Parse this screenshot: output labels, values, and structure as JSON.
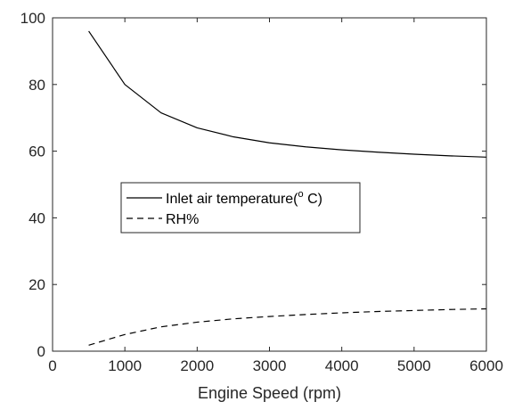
{
  "chart_data": {
    "type": "line",
    "xlabel": "Engine Speed (rpm)",
    "ylabel": "",
    "xlim": [
      0,
      6000
    ],
    "ylim": [
      0,
      100
    ],
    "xticks": [
      0,
      1000,
      2000,
      3000,
      4000,
      5000,
      6000
    ],
    "yticks": [
      0,
      20,
      40,
      60,
      80,
      100
    ],
    "grid": false,
    "box": true,
    "legend": {
      "placement": "center-left",
      "entries": [
        {
          "label_main": "Inlet air temperature(",
          "label_sup": "o",
          "label_tail": " C)"
        },
        {
          "label_main": "RH%",
          "label_sup": "",
          "label_tail": ""
        }
      ]
    },
    "series": [
      {
        "name": "Inlet air temperature(o C)",
        "style": "solid",
        "color": "#000000",
        "x": [
          500,
          1000,
          1500,
          2000,
          2500,
          3000,
          3500,
          4000,
          4500,
          5000,
          5500,
          6000
        ],
        "y": [
          96,
          80,
          71.5,
          67,
          64.3,
          62.5,
          61.3,
          60.4,
          59.7,
          59.1,
          58.6,
          58.2
        ]
      },
      {
        "name": "RH%",
        "style": "dashed",
        "color": "#000000",
        "x": [
          500,
          1000,
          1500,
          2000,
          2500,
          3000,
          3500,
          4000,
          4500,
          5000,
          5500,
          6000
        ],
        "y": [
          1.8,
          5.0,
          7.3,
          8.7,
          9.7,
          10.4,
          11.0,
          11.5,
          11.9,
          12.2,
          12.5,
          12.7
        ]
      }
    ]
  }
}
